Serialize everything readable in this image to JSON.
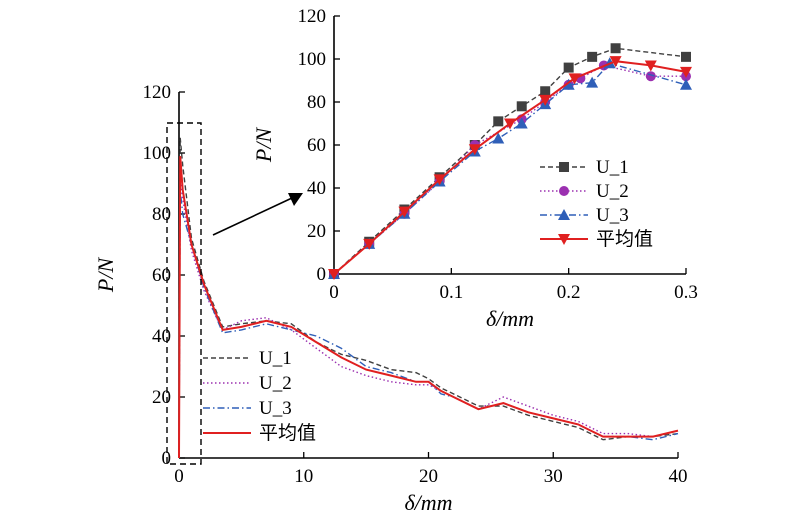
{
  "chart_data": [
    {
      "type": "line",
      "xlabel": "δ/mm",
      "ylabel": "P/N",
      "xlim": [
        0,
        40
      ],
      "ylim": [
        0,
        120
      ],
      "xticks": [
        "0",
        "10",
        "20",
        "30",
        "40"
      ],
      "yticks": [
        "0",
        "20",
        "40",
        "60",
        "80",
        "100",
        "120"
      ],
      "legend_position": "lower-left",
      "series": [
        {
          "name": "U_1",
          "color": "#404040",
          "dash": "dashed",
          "x": [
            0,
            0.1,
            0.3,
            1,
            2,
            3,
            3.5,
            5,
            7,
            9,
            11,
            13,
            15,
            17,
            19,
            20,
            21,
            22,
            24,
            26,
            28,
            30,
            32,
            33,
            34,
            36,
            38,
            40
          ],
          "y": [
            0,
            105,
            96,
            72,
            58,
            48,
            43,
            44,
            45,
            44,
            38,
            34,
            32,
            29,
            28,
            26,
            23,
            21,
            17,
            17,
            14,
            12,
            10,
            8,
            6,
            7,
            7,
            8
          ]
        },
        {
          "name": "U_2",
          "color": "#9b30b0",
          "dash": "dotted",
          "x": [
            0,
            0.1,
            0.3,
            1,
            2,
            3,
            3.5,
            5,
            7,
            9,
            11,
            13,
            15,
            17,
            19,
            20,
            21,
            22,
            24,
            26,
            28,
            30,
            32,
            33,
            34,
            36,
            38,
            40
          ],
          "y": [
            0,
            92,
            85,
            68,
            55,
            46,
            42,
            45,
            46,
            42,
            36,
            30,
            27,
            25,
            24,
            24,
            22,
            20,
            16,
            20,
            17,
            14,
            12,
            10,
            8,
            8,
            7,
            9
          ]
        },
        {
          "name": "U_3",
          "color": "#2f5fb8",
          "dash": "dashdot",
          "x": [
            0,
            0.1,
            0.3,
            1,
            2,
            3,
            3.5,
            5,
            7,
            9,
            11,
            13,
            15,
            17,
            19,
            20,
            21,
            22,
            24,
            26,
            28,
            30,
            32,
            33,
            34,
            36,
            38,
            40
          ],
          "y": [
            0,
            88,
            80,
            70,
            56,
            46,
            41,
            42,
            44,
            42,
            40,
            36,
            30,
            28,
            25,
            25,
            21,
            20,
            16,
            18,
            15,
            13,
            11,
            9,
            7,
            7,
            6,
            8
          ]
        },
        {
          "name": "平均值",
          "color": "#e02020",
          "dash": "solid",
          "x": [
            0,
            0.1,
            0.3,
            1,
            2,
            3,
            3.5,
            5,
            7,
            9,
            11,
            13,
            15,
            17,
            19,
            20,
            21,
            22,
            24,
            26,
            28,
            30,
            32,
            33,
            34,
            36,
            38,
            40
          ],
          "y": [
            0,
            99,
            88,
            70,
            57,
            47,
            42,
            43,
            45,
            43,
            38,
            33,
            29,
            27,
            25,
            25,
            22,
            20,
            16,
            18,
            15,
            13,
            11,
            9,
            7,
            7,
            7,
            9
          ]
        }
      ]
    },
    {
      "type": "line",
      "xlabel": "δ/mm",
      "ylabel": "P/N",
      "xlim": [
        0,
        0.3
      ],
      "ylim": [
        0,
        120
      ],
      "xticks": [
        "0",
        "0.1",
        "0.2",
        "0.3"
      ],
      "yticks": [
        "0",
        "20",
        "40",
        "60",
        "80",
        "100",
        "120"
      ],
      "legend_position": "center",
      "series": [
        {
          "name": "U_1",
          "color": "#404040",
          "dash": "dashed",
          "marker": "square",
          "x": [
            0,
            0.03,
            0.06,
            0.09,
            0.12,
            0.14,
            0.16,
            0.18,
            0.2,
            0.22,
            0.24,
            0.3
          ],
          "y": [
            0,
            15,
            30,
            45,
            60,
            71,
            78,
            85,
            96,
            101,
            105,
            101
          ]
        },
        {
          "name": "U_2",
          "color": "#9b30b0",
          "dash": "dotted",
          "marker": "circle",
          "x": [
            0,
            0.03,
            0.06,
            0.09,
            0.12,
            0.16,
            0.18,
            0.2,
            0.21,
            0.23,
            0.27,
            0.3
          ],
          "y": [
            0,
            14,
            28,
            43,
            60,
            72,
            80,
            88,
            91,
            97,
            92,
            92
          ]
        },
        {
          "name": "U_3",
          "color": "#2f5fb8",
          "dash": "dashdot",
          "marker": "triangle-up",
          "x": [
            0,
            0.03,
            0.06,
            0.09,
            0.12,
            0.14,
            0.16,
            0.18,
            0.2,
            0.22,
            0.235,
            0.3
          ],
          "y": [
            0,
            14,
            28,
            43,
            57,
            63,
            70,
            79,
            88,
            89,
            98,
            88
          ]
        },
        {
          "name": "平均值",
          "color": "#e02020",
          "dash": "solid",
          "marker": "triangle-down",
          "x": [
            0,
            0.03,
            0.06,
            0.09,
            0.12,
            0.15,
            0.18,
            0.205,
            0.24,
            0.27,
            0.3
          ],
          "y": [
            0,
            14,
            29,
            44,
            58,
            70,
            81,
            91,
            99,
            97,
            94
          ]
        }
      ]
    }
  ]
}
